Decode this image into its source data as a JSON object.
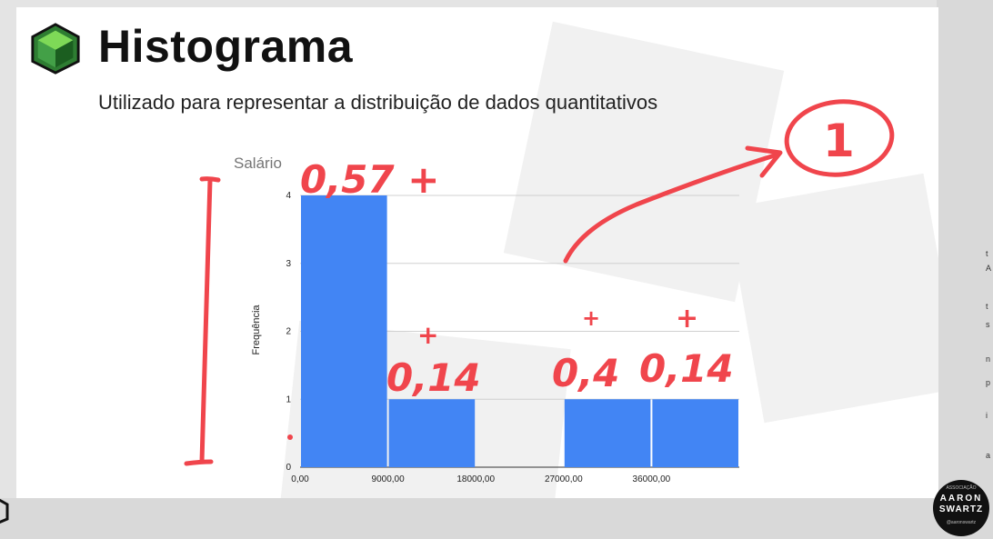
{
  "slide": {
    "title": "Histograma",
    "subtitle": "Utilizado para representar a distribuição de dados quantitativos"
  },
  "chart_data": {
    "type": "bar",
    "title": "Salário",
    "xlabel": "",
    "ylabel": "Frequência",
    "x_ticks": [
      "0,00",
      "9000,00",
      "18000,00",
      "27000,00",
      "36000,00"
    ],
    "bins": [
      {
        "from": 0,
        "to": 9000,
        "value": 4
      },
      {
        "from": 9000,
        "to": 18000,
        "value": 1
      },
      {
        "from": 18000,
        "to": 27000,
        "value": 0
      },
      {
        "from": 27000,
        "to": 36000,
        "value": 1
      },
      {
        "from": 36000,
        "to": 45000,
        "value": 1
      }
    ],
    "y_ticks": [
      0,
      1,
      2,
      3,
      4
    ],
    "xlim": [
      0,
      45000
    ],
    "ylim": [
      0,
      4
    ],
    "grid": true,
    "bar_color": "#4285f4"
  },
  "annotations": {
    "handwritten": [
      "0,57 +",
      "+",
      "0,14",
      "+",
      "0,4",
      "+",
      "0,14",
      "1"
    ],
    "color": "#f0454c"
  },
  "watermark_badge": {
    "top": "ASSOCIAÇÃO",
    "line1": "AARON",
    "line2": "SWARTZ",
    "bottom": "@aaronswartz"
  },
  "right_strip_letters": [
    "t",
    "A",
    "t",
    "s",
    "n",
    "p",
    "i",
    "a"
  ]
}
